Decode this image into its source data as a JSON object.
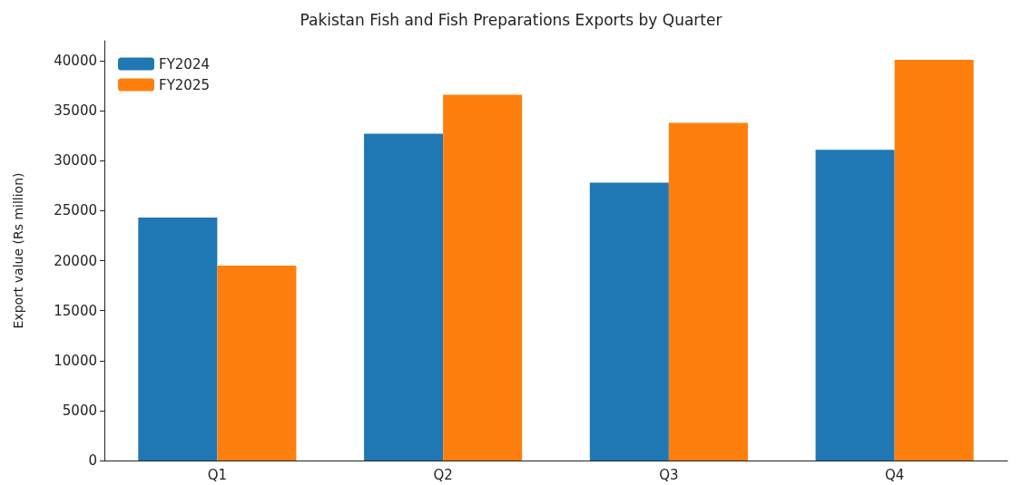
{
  "chart_data": {
    "type": "bar",
    "title": "Pakistan Fish and Fish Preparations Exports by Quarter",
    "ylabel": "Export value (Rs million)",
    "categories": [
      "Q1",
      "Q2",
      "Q3",
      "Q4"
    ],
    "series": [
      {
        "name": "FY2024",
        "color": "#1f77b4",
        "values": [
          24300,
          32700,
          27800,
          31100
        ]
      },
      {
        "name": "FY2025",
        "color": "#ff7f0e",
        "values": [
          19500,
          36600,
          33800,
          40100
        ]
      }
    ],
    "ylim": [
      0,
      42000
    ],
    "yticks": [
      0,
      5000,
      10000,
      15000,
      20000,
      25000,
      30000,
      35000,
      40000
    ],
    "grid": false,
    "legend": "top left"
  }
}
